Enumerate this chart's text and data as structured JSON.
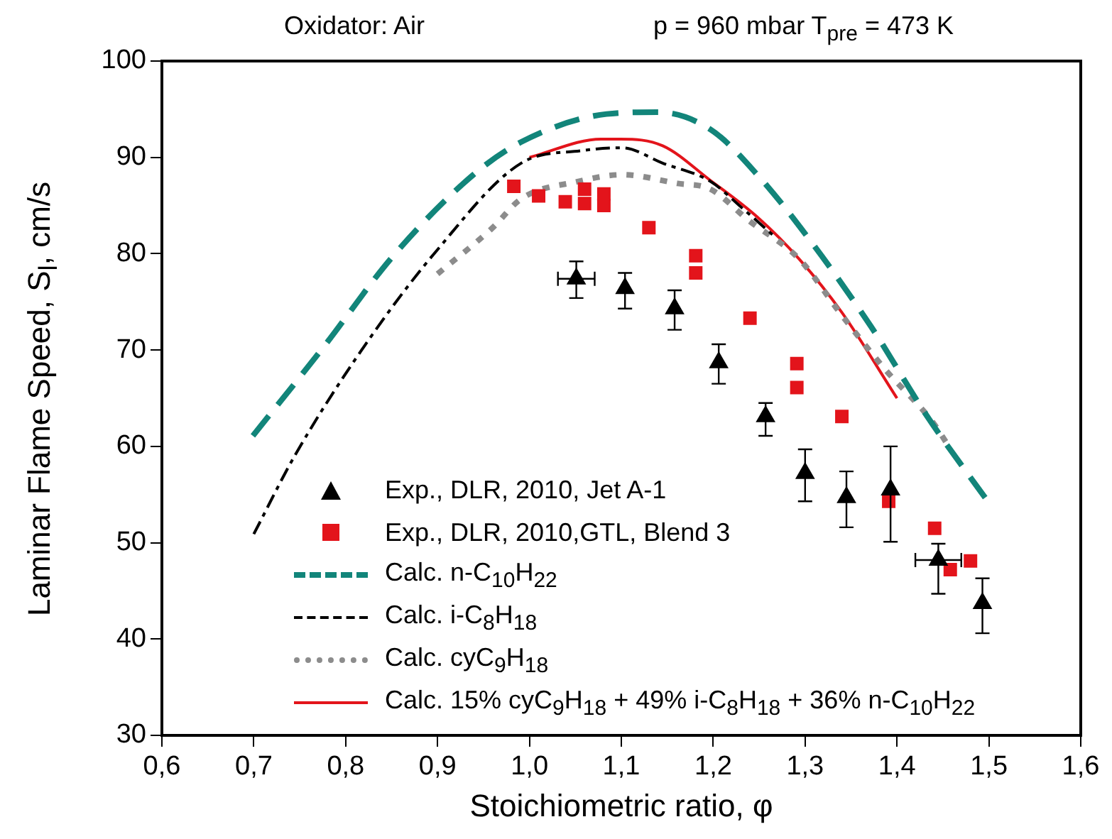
{
  "chart_data": {
    "type": "line",
    "title": "Oxidator: Air",
    "subtitle": "p = 960 mbar  T$_{pre}$ = 473 K",
    "xlabel": "Stoichiometric ratio, φ",
    "ylabel": "Laminar  Flame Speed, S$_{l}$, cm/s",
    "xlim": [
      0.6,
      1.6
    ],
    "ylim": [
      30,
      100
    ],
    "xticks": [
      {
        "value": 0.6,
        "label": "0,6"
      },
      {
        "value": 0.7,
        "label": "0,7"
      },
      {
        "value": 0.8,
        "label": "0,8"
      },
      {
        "value": 0.9,
        "label": "0,9"
      },
      {
        "value": 1.0,
        "label": "1,0"
      },
      {
        "value": 1.1,
        "label": "1,1"
      },
      {
        "value": 1.2,
        "label": "1,2"
      },
      {
        "value": 1.3,
        "label": "1,3"
      },
      {
        "value": 1.4,
        "label": "1,4"
      },
      {
        "value": 1.5,
        "label": "1,5"
      },
      {
        "value": 1.6,
        "label": "1,6"
      }
    ],
    "yticks": [
      30,
      40,
      50,
      60,
      70,
      80,
      90,
      100
    ],
    "grid": false,
    "legend": "bottom left",
    "series": [
      {
        "name": "Exp., DLR, 2010, Jet A-1",
        "type": "scatter",
        "marker": "triangle",
        "color": "#000000",
        "x": [
          1.051,
          1.104,
          1.158,
          1.206,
          1.257,
          1.3,
          1.345,
          1.393,
          1.445,
          1.493
        ],
        "values": [
          77.4,
          76.4,
          74.3,
          68.7,
          63.1,
          57.2,
          54.7,
          55.5,
          48.2,
          43.7
        ],
        "errors": [
          [
            75.4,
            79.2
          ],
          [
            74.3,
            78.0
          ],
          [
            72.1,
            76.2
          ],
          [
            66.5,
            70.6
          ],
          [
            61.1,
            64.5
          ],
          [
            54.3,
            59.7
          ],
          [
            51.6,
            57.4
          ],
          [
            50.1,
            60.0
          ],
          [
            44.7,
            49.9
          ],
          [
            40.6,
            46.3
          ]
        ],
        "xerrors": [
          0.02,
          null,
          null,
          null,
          null,
          null,
          null,
          null,
          0.025,
          null
        ]
      },
      {
        "name": "Exp., DLR, 2010,GTL, Blend 3",
        "type": "scatter",
        "marker": "square",
        "color": "#e3141b",
        "x": [
          0.983,
          1.01,
          1.039,
          1.06,
          1.06,
          1.081,
          1.081,
          1.13,
          1.181,
          1.181,
          1.24,
          1.291,
          1.291,
          1.34,
          1.391,
          1.441,
          1.458,
          1.48
        ],
        "values": [
          87.0,
          86.0,
          85.4,
          86.7,
          85.2,
          86.2,
          85.0,
          82.7,
          79.8,
          78.0,
          73.3,
          68.6,
          66.1,
          63.1,
          54.3,
          51.5,
          47.2,
          48.1
        ]
      },
      {
        "name": "Calc. n-C$_{10}$H$_{22}$",
        "line_style": "dashed",
        "color": "#12857a",
        "x": [
          0.699,
          0.775,
          0.852,
          0.939,
          0.991,
          1.084,
          1.139,
          1.197,
          1.248,
          1.31,
          1.372,
          1.433,
          1.501
        ],
        "values": [
          61.1,
          70.2,
          79.8,
          88.2,
          91.6,
          94.5,
          94.7,
          92.9,
          88.2,
          80.8,
          72.4,
          63.1,
          54.0
        ]
      },
      {
        "name": "Calc. i-C$_{8}$H$_{18}$",
        "line_style": "dashdot",
        "color": "#000000",
        "x": [
          0.7,
          0.745,
          0.821,
          0.898,
          0.991,
          1.057,
          1.101,
          1.145,
          1.197,
          1.232,
          1.269
        ],
        "values": [
          50.9,
          59.1,
          70.5,
          80.2,
          89.4,
          90.7,
          91.0,
          89.4,
          87.5,
          84.7,
          81.6
        ]
      },
      {
        "name": "Calc. cyC$_{9}$H$_{18}$",
        "line_style": "dotted",
        "color": "#8c8c8c",
        "x": [
          0.9,
          0.96,
          0.991,
          1.053,
          1.101,
          1.161,
          1.197,
          1.238,
          1.294,
          1.34,
          1.387,
          1.439,
          1.455
        ],
        "values": [
          77.9,
          82.7,
          85.7,
          87.5,
          88.2,
          87.3,
          86.7,
          83.5,
          79.4,
          73.6,
          68.0,
          62.5,
          60.2
        ]
      },
      {
        "name": "Calc. 15% cyC$_{9}$H$_{18}$ + 49% i-C$_{8}$H$_{18}$ + 36% n-C$_{10}$H$_{22}$",
        "line_style": "solid",
        "color": "#e3141b",
        "x": [
          1.0,
          1.078,
          1.099,
          1.145,
          1.197,
          1.248,
          1.294,
          1.34,
          1.4
        ],
        "values": [
          90.0,
          91.9,
          91.9,
          91.2,
          87.6,
          83.8,
          79.4,
          73.9,
          65.0
        ]
      }
    ]
  }
}
